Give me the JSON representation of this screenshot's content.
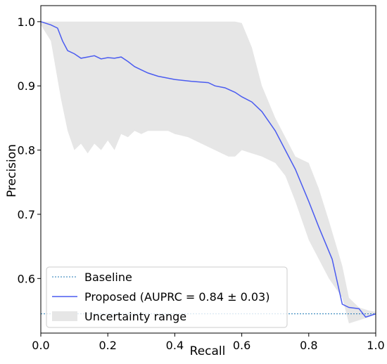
{
  "chart_data": {
    "type": "line",
    "xlabel": "Recall",
    "ylabel": "Precision",
    "xlim": [
      0.0,
      1.0
    ],
    "ylim": [
      0.515,
      1.025
    ],
    "x_ticks": [
      0.0,
      0.2,
      0.4,
      0.6,
      0.8,
      1.0
    ],
    "x_tick_labels": [
      "0.0",
      "0.2",
      "0.4",
      "0.6",
      "0.8",
      "1.0"
    ],
    "y_ticks": [
      0.6,
      0.7,
      0.8,
      0.9,
      1.0
    ],
    "y_tick_labels": [
      "0.6",
      "0.7",
      "0.8",
      "0.9",
      "1.0"
    ],
    "grid": false,
    "legend_position": "bottom-left",
    "series": [
      {
        "name": "Baseline",
        "kind": "horizontal-line",
        "style": "dotted",
        "color": "#1f77b4",
        "y": 0.545
      },
      {
        "name": "Proposed (AUPRC = 0.84 ± 0.03)",
        "kind": "line",
        "color": "#4b5cf0",
        "x": [
          0.0,
          0.03,
          0.05,
          0.065,
          0.08,
          0.1,
          0.12,
          0.14,
          0.16,
          0.18,
          0.2,
          0.22,
          0.24,
          0.26,
          0.28,
          0.3,
          0.32,
          0.35,
          0.4,
          0.45,
          0.5,
          0.52,
          0.55,
          0.58,
          0.6,
          0.63,
          0.66,
          0.7,
          0.73,
          0.76,
          0.8,
          0.83,
          0.87,
          0.9,
          0.92,
          0.95,
          0.97,
          1.0
        ],
        "y": [
          1.0,
          0.995,
          0.99,
          0.97,
          0.955,
          0.95,
          0.943,
          0.945,
          0.947,
          0.942,
          0.944,
          0.943,
          0.945,
          0.938,
          0.93,
          0.925,
          0.92,
          0.915,
          0.91,
          0.907,
          0.905,
          0.9,
          0.897,
          0.89,
          0.883,
          0.875,
          0.86,
          0.83,
          0.8,
          0.77,
          0.72,
          0.68,
          0.63,
          0.56,
          0.555,
          0.553,
          0.54,
          0.545
        ]
      }
    ],
    "band": {
      "name": "Uncertainty range",
      "color": "#e6e6e6",
      "x": [
        0.0,
        0.03,
        0.06,
        0.08,
        0.1,
        0.12,
        0.14,
        0.16,
        0.18,
        0.2,
        0.22,
        0.24,
        0.26,
        0.28,
        0.3,
        0.32,
        0.35,
        0.38,
        0.4,
        0.44,
        0.48,
        0.52,
        0.56,
        0.58,
        0.6,
        0.63,
        0.66,
        0.7,
        0.73,
        0.76,
        0.8,
        0.83,
        0.86,
        0.9,
        0.92,
        0.95,
        0.98,
        1.0
      ],
      "upper": [
        1.0,
        1.0,
        1.0,
        1.0,
        1.0,
        1.0,
        1.0,
        1.0,
        1.0,
        1.0,
        1.0,
        1.0,
        1.0,
        1.0,
        1.0,
        1.0,
        1.0,
        1.0,
        1.0,
        1.0,
        1.0,
        1.0,
        1.0,
        1.0,
        0.998,
        0.96,
        0.9,
        0.85,
        0.82,
        0.79,
        0.78,
        0.74,
        0.69,
        0.62,
        0.57,
        0.555,
        0.55,
        0.548
      ],
      "lower": [
        0.995,
        0.97,
        0.88,
        0.83,
        0.8,
        0.81,
        0.795,
        0.81,
        0.8,
        0.815,
        0.8,
        0.825,
        0.82,
        0.83,
        0.825,
        0.83,
        0.83,
        0.83,
        0.825,
        0.82,
        0.81,
        0.8,
        0.79,
        0.79,
        0.8,
        0.795,
        0.79,
        0.78,
        0.76,
        0.72,
        0.66,
        0.63,
        0.6,
        0.57,
        0.53,
        0.535,
        0.54,
        0.545
      ]
    }
  }
}
